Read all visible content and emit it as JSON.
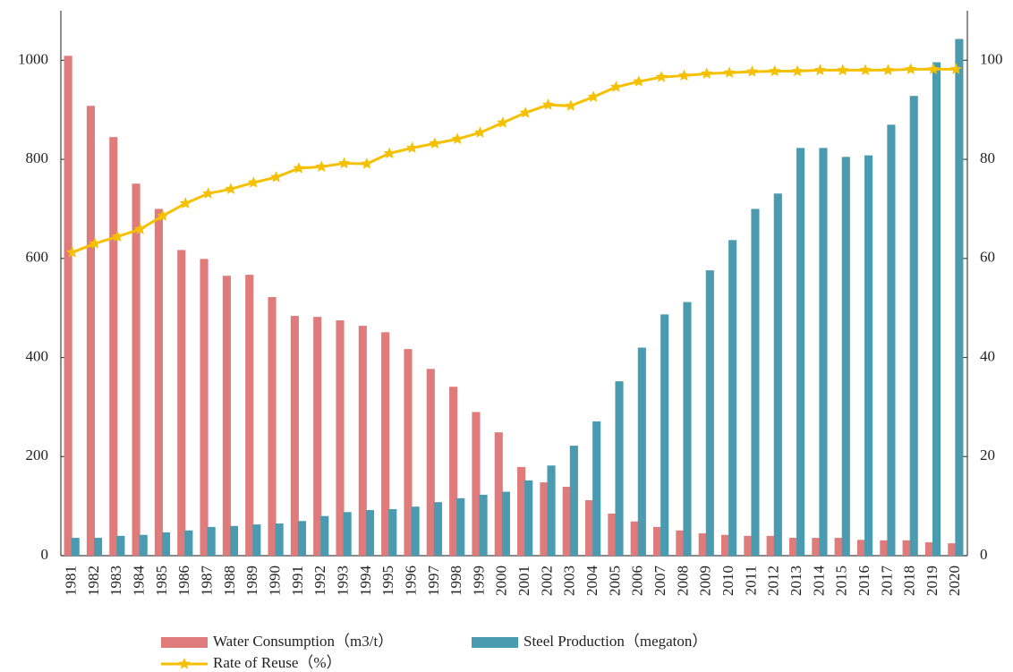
{
  "chart_data": {
    "type": "bar",
    "categories": [
      "1981",
      "1982",
      "1983",
      "1984",
      "1985",
      "1986",
      "1987",
      "1988",
      "1989",
      "1990",
      "1991",
      "1992",
      "1993",
      "1994",
      "1995",
      "1996",
      "1997",
      "1998",
      "1999",
      "2000",
      "2001",
      "2002",
      "2003",
      "2004",
      "2005",
      "2006",
      "2007",
      "2008",
      "2009",
      "2010",
      "2011",
      "2012",
      "2013",
      "2014",
      "2015",
      "2016",
      "2017",
      "2018",
      "2019",
      "2020"
    ],
    "series": [
      {
        "name": "Water Consumption（m3/t）",
        "color": "#e07b7b",
        "type": "bar",
        "values": [
          1009,
          908,
          845,
          751,
          700,
          617,
          599,
          565,
          567,
          522,
          484,
          482,
          475,
          464,
          451,
          417,
          377,
          341,
          290,
          249,
          179,
          148,
          139,
          112,
          85,
          69,
          58,
          51,
          45,
          42,
          40,
          40,
          36,
          36,
          36,
          32,
          31,
          31,
          27,
          25
        ]
      },
      {
        "name": "Steel Production（megaton）",
        "color": "#4a9bb0",
        "type": "bar",
        "values": [
          36,
          36,
          40,
          42,
          47,
          51,
          58,
          60,
          63,
          65,
          70,
          80,
          88,
          92,
          94,
          99,
          108,
          116,
          123,
          129,
          152,
          182,
          222,
          271,
          352,
          420,
          487,
          512,
          576,
          637,
          700,
          731,
          823,
          823,
          805,
          808,
          870,
          928,
          996,
          1043
        ]
      },
      {
        "name": "Rate of Reuse（%）",
        "color": "#f5c000",
        "type": "line",
        "axis": "y2",
        "values": [
          61.2,
          63,
          64.4,
          65.9,
          68.6,
          71.1,
          73.1,
          74,
          75.3,
          76.4,
          78.2,
          78.5,
          79.2,
          79.1,
          81.2,
          82.3,
          83.2,
          84.1,
          85.4,
          87.4,
          89.4,
          91,
          90.8,
          92.6,
          94.6,
          95.7,
          96.6,
          96.9,
          97.3,
          97.5,
          97.7,
          97.8,
          97.8,
          98,
          98,
          98,
          98,
          98.2,
          98.2,
          98.2
        ]
      }
    ],
    "ylim": [
      0,
      1100
    ],
    "yticks": [
      0,
      200,
      400,
      600,
      800,
      1000
    ],
    "y2lim": [
      0,
      110
    ],
    "y2ticks": [
      0,
      20,
      40,
      60,
      80,
      100
    ],
    "legend": "bottom"
  }
}
